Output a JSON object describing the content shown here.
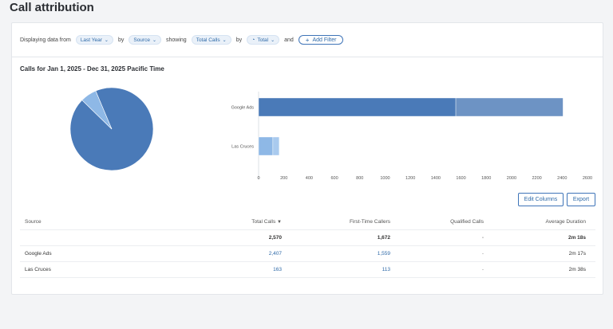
{
  "page": {
    "title": "Call attribution"
  },
  "filters": {
    "displaying_label": "Displaying data from",
    "range": "Last Year",
    "by1": "by",
    "source": "Source",
    "showing": "showing",
    "metric": "Total Calls",
    "by2": "by",
    "grouping": "Total",
    "and": "and",
    "add_filter": "Add Filter"
  },
  "chart_section": {
    "title": "Calls for Jan 1, 2025 - Dec 31, 2025 Pacific Time"
  },
  "chart_data": [
    {
      "type": "pie",
      "slices": [
        {
          "label": "Google Ads",
          "value": 2407,
          "color": "#4a7ab8"
        },
        {
          "label": "Las Cruces",
          "value": 163,
          "color": "#8eb8e6"
        }
      ]
    },
    {
      "type": "bar",
      "orientation": "horizontal",
      "stacked": true,
      "categories": [
        "Google Ads",
        "Las Cruces"
      ],
      "series": [
        {
          "values": [
            1559,
            113
          ],
          "colors": [
            "#4a7ab8",
            "#8eb8e6"
          ]
        },
        {
          "values": [
            848,
            50
          ],
          "colors": [
            "#6d93c4",
            "#a9caee"
          ]
        }
      ],
      "xlim": [
        0,
        2600
      ],
      "xticks": [
        "0",
        "200",
        "400",
        "600",
        "800",
        "1000",
        "1200",
        "1400",
        "1600",
        "1800",
        "2000",
        "2200",
        "2400",
        "2600"
      ]
    }
  ],
  "actions": {
    "edit_columns": "Edit Columns",
    "export": "Export"
  },
  "table": {
    "headers": {
      "source": "Source",
      "total_calls": "Total Calls",
      "sort_indicator": "▼",
      "first_time": "First-Time Callers",
      "qualified": "Qualified Calls",
      "avg_duration": "Average Duration"
    },
    "total_row": {
      "source": "",
      "total_calls": "2,570",
      "first_time": "1,672",
      "qualified": "-",
      "avg_duration": "2m 18s"
    },
    "rows": [
      {
        "source": "Google Ads",
        "total_calls": "2,407",
        "first_time": "1,559",
        "qualified": "-",
        "avg_duration": "2m 17s"
      },
      {
        "source": "Las Cruces",
        "total_calls": "163",
        "first_time": "113",
        "qualified": "-",
        "avg_duration": "2m 38s"
      }
    ]
  }
}
